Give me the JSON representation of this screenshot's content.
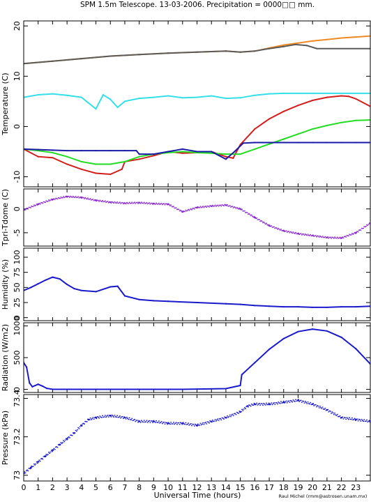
{
  "title": "SPM 1.5m Telescope. 13-03-2006. Precipitation = 0000□□ mm.",
  "xlabel": "Universal Time (hours)",
  "credit": "Raul Michel (rmm@astrosen.unam.mx)",
  "colors": {
    "frame": "#000000",
    "orange": "#ee8a22",
    "gray": "#5a5a5a",
    "cyan": "#33e0e8",
    "red": "#d41c1c",
    "green": "#22dd22",
    "navy": "#1a1aa8",
    "purple": "#8a2ad0",
    "blue": "#1a1acc"
  },
  "chart_data": [
    {
      "type": "line",
      "id": "temperature",
      "ylabel": "Temperature (C)",
      "xlim": [
        0,
        24
      ],
      "ylim": [
        -12,
        21
      ],
      "yticks": [
        "20",
        "10",
        "0",
        "-10"
      ],
      "series": [
        {
          "color": "orange",
          "x": [
            0,
            2,
            4,
            6,
            8,
            10,
            12,
            14,
            15,
            16,
            17,
            18,
            19,
            20,
            21,
            22,
            23,
            24
          ],
          "y": [
            12.5,
            13,
            13.5,
            14,
            14.3,
            14.6,
            14.8,
            15,
            14.8,
            15,
            15.6,
            16.2,
            16.6,
            17,
            17.3,
            17.6,
            17.8,
            18
          ]
        },
        {
          "color": "gray",
          "x": [
            0,
            2,
            4,
            6,
            8,
            10,
            12,
            14,
            15,
            16,
            17,
            18,
            18.8,
            19.6,
            20.3,
            24
          ],
          "y": [
            12.5,
            13,
            13.5,
            14,
            14.3,
            14.6,
            14.8,
            15,
            14.8,
            15,
            15.5,
            15.9,
            16.3,
            16.1,
            15.5,
            15.5
          ]
        },
        {
          "color": "cyan",
          "x": [
            0,
            1,
            2,
            3,
            4,
            5,
            5.5,
            6,
            6.5,
            7,
            7.5,
            8,
            9,
            10,
            11,
            12,
            13,
            14,
            15,
            16,
            17,
            18,
            19,
            20,
            24
          ],
          "y": [
            5.8,
            6.3,
            6.5,
            6.2,
            5.8,
            3.5,
            6.3,
            5.4,
            3.8,
            5,
            5.3,
            5.6,
            5.8,
            6.1,
            5.7,
            5.8,
            6.1,
            5.6,
            5.7,
            6.2,
            6.5,
            6.6,
            6.6,
            6.6,
            6.6
          ]
        },
        {
          "color": "red",
          "x": [
            0,
            1,
            2,
            3,
            4,
            5,
            6,
            6.8,
            7,
            8,
            9,
            10,
            11,
            12,
            13,
            14,
            14.5,
            15,
            16,
            17,
            18,
            19,
            20,
            21,
            22,
            22.5,
            23,
            24
          ],
          "y": [
            -4.5,
            -6,
            -6.2,
            -7.5,
            -8.5,
            -9.3,
            -9.5,
            -8.5,
            -7,
            -6.5,
            -5.8,
            -5,
            -5.3,
            -5.2,
            -5,
            -6,
            -6.3,
            -3.6,
            -0.5,
            1.5,
            3,
            4.2,
            5.2,
            5.8,
            6.1,
            6,
            5.5,
            4
          ]
        },
        {
          "color": "green",
          "x": [
            0,
            1,
            2,
            3,
            4,
            5,
            6,
            7,
            8,
            9,
            10,
            11,
            12,
            13,
            14,
            15,
            16,
            17,
            18,
            19,
            20,
            21,
            22,
            23,
            24
          ],
          "y": [
            -4.5,
            -4.8,
            -5.2,
            -6,
            -7,
            -7.5,
            -7.5,
            -7,
            -6,
            -5.5,
            -5.2,
            -5,
            -5.2,
            -5.3,
            -5.5,
            -5.5,
            -4.5,
            -3.5,
            -2.5,
            -1.5,
            -0.5,
            0.2,
            0.8,
            1.2,
            1.3
          ]
        },
        {
          "color": "navy",
          "x": [
            0,
            1,
            2,
            3,
            4,
            5,
            6,
            7,
            7.8,
            8,
            9,
            10,
            11,
            12,
            13,
            14,
            14.6,
            15.2,
            16,
            17,
            18,
            19,
            20,
            21,
            22,
            23,
            24
          ],
          "y": [
            -4.5,
            -4.6,
            -4.7,
            -4.8,
            -4.8,
            -4.8,
            -4.8,
            -4.8,
            -4.8,
            -5.5,
            -5.5,
            -5,
            -4.5,
            -5,
            -5,
            -6.5,
            -5,
            -3.3,
            -3.2,
            -3.2,
            -3.2,
            -3.2,
            -3.2,
            -3.2,
            -3.2,
            -3.2,
            -3.2
          ]
        }
      ]
    },
    {
      "type": "scatter",
      "id": "tdome",
      "ylabel": "Tpri-Tdome (C)",
      "xlim": [
        0,
        24
      ],
      "ylim": [
        -7.8,
        4.2
      ],
      "yticks": [
        "0",
        "-5"
      ],
      "series": [
        {
          "color": "purple",
          "x": [
            0,
            1,
            2,
            3,
            4,
            5,
            6,
            7,
            8,
            9,
            10,
            11,
            12,
            13,
            14,
            15,
            16,
            17,
            18,
            19,
            20,
            21,
            22,
            23,
            24
          ],
          "y": [
            -0.2,
            1,
            2,
            2.6,
            2.4,
            1.8,
            1.4,
            1.2,
            1.3,
            1.1,
            1,
            -0.6,
            0.3,
            0.6,
            0.8,
            0,
            -1.8,
            -3.5,
            -4.6,
            -5.2,
            -5.6,
            -6,
            -6.1,
            -5,
            -3
          ]
        }
      ]
    },
    {
      "type": "line",
      "id": "humidity",
      "ylabel": "Humidity (%)",
      "xlim": [
        0,
        24
      ],
      "ylim": [
        -5,
        115
      ],
      "yticks": [
        "100",
        "75",
        "50",
        "25",
        "0"
      ],
      "series": [
        {
          "color": "blue",
          "x": [
            0,
            0.5,
            1,
            1.5,
            2,
            2.5,
            3,
            3.5,
            4,
            5,
            6,
            6.5,
            7,
            8,
            9,
            10,
            12,
            14,
            15,
            16,
            17,
            18,
            19,
            20,
            21,
            22,
            23,
            24
          ],
          "y": [
            45,
            50,
            56,
            62,
            67,
            64,
            55,
            48,
            45,
            43,
            51,
            52,
            36,
            30,
            28,
            27,
            25,
            23,
            22,
            20,
            19,
            18,
            18,
            17,
            17,
            18,
            18,
            19
          ]
        }
      ]
    },
    {
      "type": "line",
      "id": "radiation",
      "ylabel": "Radiation (W/m2)",
      "xlim": [
        0,
        24
      ],
      "ylim": [
        -50,
        1050
      ],
      "yticks": [
        "1000",
        "500",
        "0"
      ],
      "series": [
        {
          "color": "blue",
          "x": [
            0,
            0.2,
            0.4,
            0.6,
            0.8,
            1,
            1.3,
            1.6,
            2,
            3,
            5,
            8,
            11,
            14,
            15,
            15.1,
            16,
            17,
            18,
            19,
            20,
            21,
            22,
            23,
            24
          ],
          "y": [
            420,
            350,
            100,
            40,
            60,
            80,
            50,
            15,
            0,
            0,
            0,
            0,
            0,
            10,
            60,
            230,
            420,
            630,
            800,
            910,
            950,
            920,
            820,
            640,
            400
          ]
        }
      ]
    },
    {
      "type": "scatter",
      "id": "pressure",
      "ylabel": "Pressure (kPa)",
      "xlim": [
        0,
        24
      ],
      "ylim": [
        72.97,
        73.42
      ],
      "yticks": [
        "73.4",
        "73.2",
        "73"
      ],
      "series": [
        {
          "color": "blue",
          "x": [
            0,
            0.5,
            1,
            1.5,
            2,
            2.5,
            3,
            3.5,
            4,
            4.5,
            5,
            6,
            7,
            8,
            9,
            10,
            11,
            12,
            13,
            14,
            15,
            15.5,
            16,
            17,
            18,
            19,
            20,
            21,
            22,
            23,
            24
          ],
          "y": [
            73.01,
            73.04,
            73.07,
            73.1,
            73.13,
            73.16,
            73.19,
            73.22,
            73.26,
            73.29,
            73.3,
            73.31,
            73.3,
            73.28,
            73.28,
            73.27,
            73.27,
            73.26,
            73.28,
            73.3,
            73.33,
            73.36,
            73.37,
            73.37,
            73.38,
            73.39,
            73.37,
            73.34,
            73.3,
            73.29,
            73.28
          ]
        }
      ]
    }
  ],
  "xticks": [
    "0",
    "1",
    "2",
    "3",
    "4",
    "5",
    "6",
    "7",
    "8",
    "9",
    "10",
    "11",
    "12",
    "13",
    "14",
    "15",
    "16",
    "17",
    "18",
    "19",
    "20",
    "21",
    "22",
    "23"
  ]
}
